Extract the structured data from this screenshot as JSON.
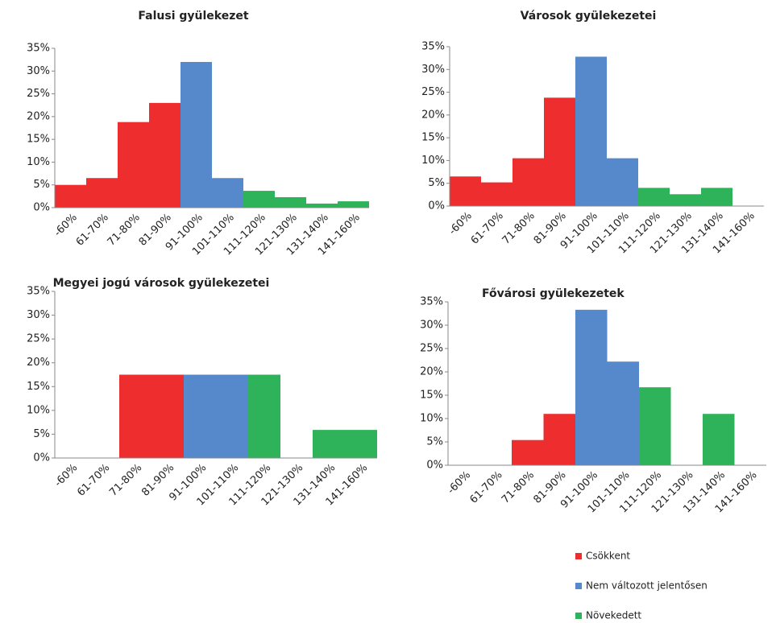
{
  "chart_data": [
    {
      "type": "bar",
      "title": "Falusi gyülekezet",
      "categories": [
        "-60%",
        "61-70%",
        "71-80%",
        "81-90%",
        "91-100%",
        "101-110%",
        "111-120%",
        "121-130%",
        "131-140%",
        "141-160%"
      ],
      "values": [
        5,
        6.5,
        18.8,
        23,
        32,
        6.5,
        3.7,
        2.3,
        0.9,
        1.4
      ],
      "bar_colors": [
        "#ee2e2e",
        "#ee2e2e",
        "#ee2e2e",
        "#ee2e2e",
        "#5589cc",
        "#5589cc",
        "#2fb35a",
        "#2fb35a",
        "#2fb35a",
        "#2fb35a"
      ],
      "ylim": [
        0,
        35
      ],
      "yticks": [
        {
          "value": 0,
          "label": "0%"
        },
        {
          "value": 5,
          "label": "5%"
        },
        {
          "value": 10,
          "label": "10%"
        },
        {
          "value": 15,
          "label": "15%"
        },
        {
          "value": 20,
          "label": "20%"
        },
        {
          "value": 25,
          "label": "25%"
        },
        {
          "value": 30,
          "label": "30%"
        },
        {
          "value": 35,
          "label": "35%"
        }
      ]
    },
    {
      "type": "bar",
      "title": "Városok gyülekezetei",
      "categories": [
        "-60%",
        "61-70%",
        "71-80%",
        "81-90%",
        "91-100%",
        "101-110%",
        "111-120%",
        "121-130%",
        "131-140%",
        "141-160%"
      ],
      "values": [
        6.5,
        5.2,
        10.5,
        23.8,
        32.8,
        10.5,
        4,
        2.6,
        4,
        0
      ],
      "bar_colors": [
        "#ee2e2e",
        "#ee2e2e",
        "#ee2e2e",
        "#ee2e2e",
        "#5589cc",
        "#5589cc",
        "#2fb35a",
        "#2fb35a",
        "#2fb35a",
        "#2fb35a"
      ],
      "ylim": [
        0,
        35
      ],
      "yticks": [
        {
          "value": 0,
          "label": "0%"
        },
        {
          "value": 5,
          "label": "5%"
        },
        {
          "value": 10,
          "label": "10%"
        },
        {
          "value": 15,
          "label": "15%"
        },
        {
          "value": 20,
          "label": "20%"
        },
        {
          "value": 25,
          "label": "25%"
        },
        {
          "value": 30,
          "label": "30%"
        },
        {
          "value": 35,
          "label": "35%"
        }
      ]
    },
    {
      "type": "bar",
      "title": "Megyei jogú városok gyülekezetei",
      "categories": [
        "-60%",
        "61-70%",
        "71-80%",
        "81-90%",
        "91-100%",
        "101-110%",
        "111-120%",
        "121-130%",
        "131-140%",
        "141-160%"
      ],
      "values": [
        0,
        0,
        17.5,
        17.5,
        17.5,
        17.5,
        17.5,
        0,
        5.9,
        5.9
      ],
      "bar_colors": [
        "#ee2e2e",
        "#ee2e2e",
        "#ee2e2e",
        "#ee2e2e",
        "#5589cc",
        "#5589cc",
        "#2fb35a",
        "#2fb35a",
        "#2fb35a",
        "#2fb35a"
      ],
      "ylim": [
        0,
        35
      ],
      "yticks": [
        {
          "value": 0,
          "label": "0%"
        },
        {
          "value": 5,
          "label": "5%"
        },
        {
          "value": 10,
          "label": "10%"
        },
        {
          "value": 15,
          "label": "15%"
        },
        {
          "value": 20,
          "label": "20%"
        },
        {
          "value": 25,
          "label": "25%"
        },
        {
          "value": 30,
          "label": "30%"
        },
        {
          "value": 35,
          "label": "35%"
        }
      ]
    },
    {
      "type": "bar",
      "title": "Fővárosi gyülekezetek",
      "categories": [
        "-60%",
        "61-70%",
        "71-80%",
        "81-90%",
        "91-100%",
        "101-110%",
        "111-120%",
        "121-130%",
        "131-140%",
        "141-160%"
      ],
      "values": [
        0,
        0,
        5.4,
        11,
        33.3,
        22.2,
        16.7,
        0,
        11,
        0
      ],
      "bar_colors": [
        "#ee2e2e",
        "#ee2e2e",
        "#ee2e2e",
        "#ee2e2e",
        "#5589cc",
        "#5589cc",
        "#2fb35a",
        "#2fb35a",
        "#2fb35a",
        "#2fb35a"
      ],
      "ylim": [
        0,
        35
      ],
      "yticks": [
        {
          "value": 0,
          "label": "0%"
        },
        {
          "value": 5,
          "label": "5%"
        },
        {
          "value": 10,
          "label": "10%"
        },
        {
          "value": 15,
          "label": "15%"
        },
        {
          "value": 20,
          "label": "20%"
        },
        {
          "value": 25,
          "label": "25%"
        },
        {
          "value": 30,
          "label": "30%"
        },
        {
          "value": 35,
          "label": "35%"
        }
      ]
    }
  ],
  "legend": [
    {
      "name": "Csökkent",
      "color": "#ee2e2e"
    },
    {
      "name": "Nem változott  jelentősen",
      "color": "#5589cc"
    },
    {
      "name": "Növekedett",
      "color": "#2fb35a"
    }
  ]
}
